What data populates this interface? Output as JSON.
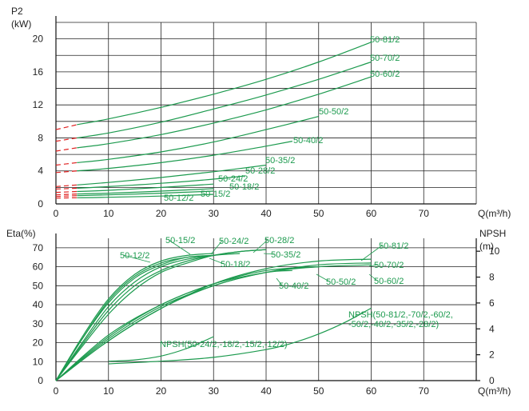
{
  "chart_data": [
    {
      "type": "line",
      "title": "",
      "ylabel": "P2",
      "yunit": "(kW)",
      "xlabel": "Q(m³/h)",
      "xlim": [
        0,
        80
      ],
      "ylim": [
        0,
        22
      ],
      "xticks": [
        0,
        10,
        20,
        30,
        40,
        50,
        60,
        70
      ],
      "yticks": [
        0,
        4,
        8,
        12,
        16,
        20
      ],
      "grid": true,
      "series": [
        {
          "name": "50-81/2",
          "x": [
            4,
            10,
            20,
            30,
            40,
            50,
            60
          ],
          "y": [
            9.6,
            10.3,
            11.7,
            13.3,
            15.1,
            17.2,
            19.6
          ],
          "dashed_x": [
            0,
            4
          ],
          "dashed_y": [
            9.0,
            9.6
          ]
        },
        {
          "name": "50-70/2",
          "x": [
            4,
            10,
            20,
            30,
            40,
            50,
            60
          ],
          "y": [
            8.0,
            8.6,
            9.9,
            11.5,
            13.2,
            15.1,
            17.2
          ],
          "dashed_x": [
            0,
            4
          ],
          "dashed_y": [
            7.6,
            8.0
          ]
        },
        {
          "name": "50-60/2",
          "x": [
            4,
            10,
            20,
            30,
            40,
            50,
            60
          ],
          "y": [
            6.8,
            7.3,
            8.4,
            9.8,
            11.4,
            13.3,
            15.4
          ],
          "dashed_x": [
            0,
            4
          ],
          "dashed_y": [
            6.4,
            6.8
          ]
        },
        {
          "name": "50-50/2",
          "x": [
            4,
            10,
            20,
            30,
            40,
            50
          ],
          "y": [
            5.0,
            5.4,
            6.3,
            7.5,
            9.0,
            10.6
          ],
          "dashed_x": [
            0,
            4
          ],
          "dashed_y": [
            4.7,
            5.0
          ]
        },
        {
          "name": "50-40/2",
          "x": [
            4,
            10,
            20,
            30,
            40,
            45
          ],
          "y": [
            4.0,
            4.3,
            5.0,
            5.9,
            7.0,
            7.6
          ],
          "dashed_x": [
            0,
            4
          ],
          "dashed_y": [
            3.8,
            4.0
          ]
        },
        {
          "name": "50-35/2",
          "x": [
            4,
            10,
            20,
            30,
            40
          ],
          "y": [
            2.3,
            2.6,
            3.2,
            3.9,
            4.7
          ],
          "dashed_x": [
            0,
            4
          ],
          "dashed_y": [
            2.1,
            2.3
          ]
        },
        {
          "name": "50-28/2",
          "x": [
            4,
            10,
            20,
            30,
            36
          ],
          "y": [
            1.9,
            2.1,
            2.5,
            3.0,
            3.4
          ],
          "dashed_x": [
            0,
            4
          ],
          "dashed_y": [
            1.8,
            1.9
          ]
        },
        {
          "name": "50-24/2",
          "x": [
            4,
            10,
            20,
            30
          ],
          "y": [
            1.5,
            1.65,
            2.0,
            2.4
          ],
          "dashed_x": [
            0,
            4
          ],
          "dashed_y": [
            1.4,
            1.5
          ]
        },
        {
          "name": "50-18/2",
          "x": [
            4,
            10,
            20,
            30
          ],
          "y": [
            1.2,
            1.3,
            1.55,
            1.85
          ],
          "dashed_x": [
            0,
            4
          ],
          "dashed_y": [
            1.1,
            1.2
          ]
        },
        {
          "name": "50-15/2",
          "x": [
            4,
            10,
            20,
            30
          ],
          "y": [
            1.0,
            1.1,
            1.3,
            1.55
          ],
          "dashed_x": [
            0,
            4
          ],
          "dashed_y": [
            0.9,
            1.0
          ]
        },
        {
          "name": "50-12/2",
          "x": [
            4,
            10,
            20,
            30
          ],
          "y": [
            0.75,
            0.8,
            0.95,
            1.15
          ],
          "dashed_x": [
            0,
            4
          ],
          "dashed_y": [
            0.7,
            0.75
          ]
        }
      ]
    },
    {
      "type": "line",
      "title": "",
      "ylabel": "Eta(%)",
      "ylabel_right": "NPSH",
      "yunit_right": "(m)",
      "xlabel": "Q(m³/h)",
      "xlim": [
        0,
        80
      ],
      "ylim": [
        0,
        75
      ],
      "ylim_right": [
        0,
        11
      ],
      "xticks": [
        0,
        10,
        20,
        30,
        40,
        50,
        60,
        70
      ],
      "yticks": [
        0,
        10,
        20,
        30,
        40,
        50,
        60,
        70
      ],
      "yticks_right": [
        0,
        2,
        4,
        6,
        8,
        10
      ],
      "grid": true,
      "series": [
        {
          "name": "50-12/2",
          "x": [
            0,
            5,
            10,
            15,
            20,
            25,
            30
          ],
          "y": [
            0,
            22,
            42,
            55,
            62,
            65,
            66
          ]
        },
        {
          "name": "50-15/2",
          "x": [
            0,
            5,
            10,
            15,
            20,
            25,
            30
          ],
          "y": [
            0,
            23,
            43,
            56,
            63,
            66,
            67
          ]
        },
        {
          "name": "50-18/2",
          "x": [
            0,
            5,
            10,
            15,
            20,
            25,
            30
          ],
          "y": [
            0,
            22,
            41,
            54,
            61,
            65,
            66
          ]
        },
        {
          "name": "50-24/2",
          "x": [
            0,
            5,
            10,
            15,
            20,
            25,
            30,
            35
          ],
          "y": [
            0,
            20,
            39,
            52,
            60,
            64,
            66,
            67
          ]
        },
        {
          "name": "50-28/2",
          "x": [
            0,
            5,
            10,
            15,
            20,
            25,
            30,
            35,
            40
          ],
          "y": [
            0,
            19,
            37,
            50,
            58,
            63,
            66,
            68,
            69
          ]
        },
        {
          "name": "50-35/2",
          "x": [
            0,
            5,
            10,
            15,
            20,
            25,
            30,
            35,
            40
          ],
          "y": [
            0,
            18,
            35,
            48,
            57,
            62,
            66,
            68,
            69
          ]
        },
        {
          "name": "50-40/2",
          "x": [
            0,
            10,
            20,
            30,
            40,
            45
          ],
          "y": [
            0,
            24,
            40,
            51,
            57,
            58
          ]
        },
        {
          "name": "50-50/2",
          "x": [
            0,
            10,
            20,
            30,
            40,
            50
          ],
          "y": [
            0,
            23,
            40,
            51,
            58,
            60
          ]
        },
        {
          "name": "50-60/2",
          "x": [
            0,
            10,
            20,
            30,
            40,
            50,
            60
          ],
          "y": [
            0,
            22,
            39,
            50,
            57,
            60,
            61
          ]
        },
        {
          "name": "50-70/2",
          "x": [
            0,
            10,
            20,
            30,
            40,
            50,
            60
          ],
          "y": [
            0,
            21,
            38,
            50,
            57,
            61,
            62
          ]
        },
        {
          "name": "50-81/2",
          "x": [
            0,
            10,
            20,
            30,
            40,
            50,
            60
          ],
          "y": [
            0,
            21,
            38,
            51,
            59,
            63,
            64
          ]
        },
        {
          "name": "NPSH(50-24/2,-18/2,-15/2,-12/2)",
          "axis": "right",
          "x": [
            10,
            15,
            20,
            25,
            30
          ],
          "y": [
            1.5,
            1.6,
            1.9,
            2.5,
            3.4
          ]
        },
        {
          "name": "NPSH(50-81/2,-70/2,-60/2,-50/2,-40/2,-35/2,-28/2)",
          "axis": "right",
          "x": [
            10,
            20,
            30,
            40,
            45,
            50,
            55,
            60
          ],
          "y": [
            1.3,
            1.5,
            1.8,
            2.4,
            2.9,
            3.6,
            4.5,
            5.6
          ]
        }
      ],
      "annotations": {
        "npsh_small": "NPSH(50-24/2,-18/2,-15/2,-12/2)",
        "npsh_large_line1": "NPSH(50-81/2,-70/2,-60/2,",
        "npsh_large_line2": "-50/2,-40/2,-35/2,-28/2)"
      }
    }
  ],
  "colors": {
    "curve": "#1c9a4e",
    "dashed": "#e02020",
    "grid": "#222222"
  }
}
